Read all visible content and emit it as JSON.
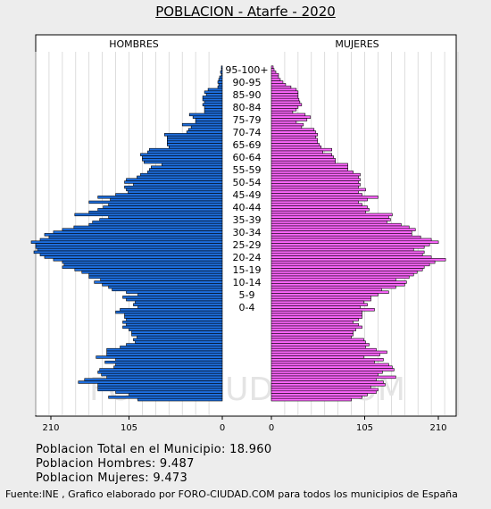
{
  "title": "POBLACION - Atarfe - 2020",
  "chart_data": {
    "type": "bar",
    "orientation": "horizontal-pyramid",
    "left_label": "HOMBRES",
    "right_label": "MUJERES",
    "axis_max": 210,
    "axis_ticks_left": [
      "210",
      "105",
      "0"
    ],
    "axis_ticks_right": [
      "0",
      "105",
      "210"
    ],
    "age_labels": [
      "95-100+",
      "90-95",
      "85-90",
      "80-84",
      "75-79",
      "70-74",
      "65-69",
      "60-64",
      "55-59",
      "50-54",
      "45-49",
      "40-44",
      "35-39",
      "30-34",
      "25-29",
      "20-24",
      "15-19",
      "10-14",
      "5-9",
      "0-4"
    ],
    "series": [
      {
        "name": "HOMBRES",
        "color": "#1e6fe0",
        "values_by_age_desc": [
          0,
          1,
          1,
          2,
          1,
          3,
          4,
          5,
          4,
          5,
          16,
          20,
          18,
          22,
          22,
          20,
          22,
          20,
          20,
          20,
          37,
          33,
          30,
          30,
          45,
          35,
          38,
          40,
          65,
          62,
          62,
          62,
          62,
          60,
          82,
          84,
          92,
          90,
          90,
          88,
          68,
          80,
          82,
          84,
          92,
          96,
          108,
          110,
          100,
          110,
          108,
          106,
          120,
          140,
          126,
          150,
          128,
          134,
          140,
          150,
          166,
          128,
          138,
          146,
          150,
          167,
          180,
          190,
          200,
          195,
          205,
          215,
          210,
          210,
          208,
          212,
          205,
          200,
          190,
          180,
          178,
          180,
          166,
          158,
          150,
          150,
          137,
          144,
          135,
          128,
          124,
          108,
          95,
          112,
          108,
          98,
          100,
          95,
          115,
          120,
          110,
          110,
          108,
          112,
          108,
          112,
          105,
          102,
          102,
          96,
          100,
          98,
          108,
          115,
          130,
          130,
          130,
          142,
          120,
          132,
          120,
          122,
          138,
          140,
          136,
          130,
          155,
          162,
          140,
          140,
          140,
          120,
          105,
          128,
          95
        ]
      },
      {
        "name": "MUJERES",
        "color": "#ff66ff",
        "values_by_age_desc": [
          0,
          2,
          3,
          5,
          8,
          8,
          10,
          13,
          16,
          22,
          28,
          30,
          30,
          30,
          31,
          32,
          34,
          30,
          28,
          24,
          38,
          44,
          40,
          28,
          36,
          34,
          48,
          50,
          52,
          50,
          52,
          52,
          54,
          56,
          68,
          58,
          68,
          70,
          72,
          72,
          86,
          86,
          86,
          92,
          100,
          98,
          100,
          98,
          100,
          98,
          106,
          98,
          102,
          120,
          108,
          98,
          102,
          108,
          110,
          106,
          136,
          132,
          134,
          130,
          146,
          155,
          162,
          158,
          158,
          168,
          180,
          188,
          178,
          172,
          160,
          172,
          170,
          180,
          196,
          184,
          178,
          172,
          170,
          164,
          160,
          155,
          140,
          152,
          150,
          140,
          124,
          132,
          120,
          112,
          112,
          104,
          108,
          100,
          116,
          102,
          102,
          102,
          98,
          92,
          98,
          102,
          95,
          92,
          92,
          90,
          104,
          106,
          110,
          106,
          118,
          130,
          122,
          104,
          126,
          116,
          132,
          136,
          138,
          125,
          120,
          140,
          118,
          126,
          128,
          112,
          120,
          118,
          108,
          102,
          90
        ]
      }
    ]
  },
  "stats": {
    "total": "Poblacion Total en el Municipio: 18.960",
    "hombres": "Poblacion Hombres: 9.487",
    "mujeres": "Poblacion Mujeres: 9.473"
  },
  "footer": "Fuente:INE , Grafico elaborado por FORO-CIUDAD.COM para todos los municipios de España",
  "watermark": "FORO-CIUDAD.COM"
}
